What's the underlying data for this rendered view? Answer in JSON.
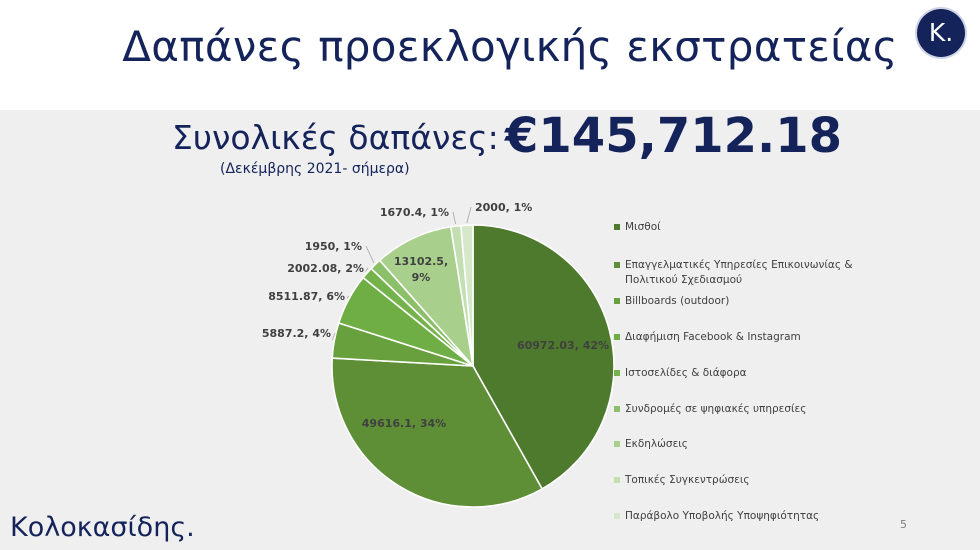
{
  "header": {
    "title": "Δαπάνες προεκλογικής εκστρατείας",
    "logo_letter": "K."
  },
  "summary": {
    "total_label": "Συνολικές δαπάνες:",
    "period": "(Δεκέμβρης 2021- σήμερα)",
    "total_value": "€145,712.18"
  },
  "footer": {
    "brand": "Κολοκασίδης.",
    "page_number": "5"
  },
  "chart_data": {
    "type": "pie",
    "total": 145712.18,
    "slices": [
      {
        "name": "Μισθοί",
        "value": 60972.03,
        "label": "60972.03, 42%",
        "color": "#4e7a2d"
      },
      {
        "name": "Επαγγελματικές Υπηρεσίες Επικοινωνίας & Πολιτικού Σχεδιασμού",
        "value": 49616.1,
        "label": "49616.1, 34%",
        "color": "#5e8e36"
      },
      {
        "name": "Billboards (outdoor)",
        "value": 5887.2,
        "label": "5887.2, 4%",
        "color": "#67a03c"
      },
      {
        "name": "Διαφήμιση Facebook & Instagram",
        "value": 8511.87,
        "label": "8511.87, 6%",
        "color": "#6fae45"
      },
      {
        "name": "Ιστοσελίδες & διάφορα",
        "value": 2002.08,
        "label": "2002.08, 2%",
        "color": "#74b34b"
      },
      {
        "name": "Συνδρομές σε ψηφιακές υπηρεσίες",
        "value": 1950,
        "label": "1950, 1%",
        "color": "#8cbf6a"
      },
      {
        "name": "Εκδηλώσεις",
        "value": 13102.5,
        "label": "13102.5, 9%",
        "color": "#a8d08c"
      },
      {
        "name": "Τοπικές Συγκεντρώσεις",
        "value": 1670.4,
        "label": "1670.4, 1%",
        "color": "#c3deb1"
      },
      {
        "name": "Παράβολο Υποβολής Υποψηφιότητας",
        "value": 2000,
        "label": "2000, 1%",
        "color": "#d6e8ca"
      }
    ],
    "legend_position": "right"
  }
}
